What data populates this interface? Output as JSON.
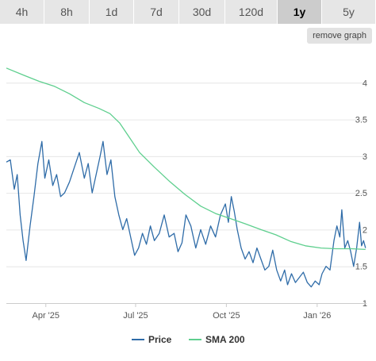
{
  "tabs": [
    {
      "label": "4h"
    },
    {
      "label": "8h"
    },
    {
      "label": "1d"
    },
    {
      "label": "7d"
    },
    {
      "label": "30d"
    },
    {
      "label": "120d"
    },
    {
      "label": "1y"
    },
    {
      "label": "5y"
    }
  ],
  "active_tab": "1y",
  "remove_graph_label": "remove graph",
  "colors": {
    "price": "#2f6ca8",
    "sma": "#5ecf8e",
    "grid": "#e6e6e6"
  },
  "chart_data": {
    "type": "line",
    "x_ticks": [
      "Apr '25",
      "Jul '25",
      "Oct '25",
      "Jan '26"
    ],
    "y_ticks": [
      "1",
      "1.5",
      "2",
      "2.5",
      "3",
      "3.5",
      "4"
    ],
    "ylim": [
      1,
      4.5
    ],
    "xlim": [
      "2025-02-20",
      "2026-02-20"
    ],
    "grid": "horizontal",
    "legend": "bottom-center",
    "series": [
      {
        "name": "Price",
        "points": [
          [
            "2025-02-20",
            2.92
          ],
          [
            "2025-02-24",
            2.95
          ],
          [
            "2025-02-28",
            2.55
          ],
          [
            "2025-03-03",
            2.75
          ],
          [
            "2025-03-06",
            2.2
          ],
          [
            "2025-03-09",
            1.85
          ],
          [
            "2025-03-12",
            1.58
          ],
          [
            "2025-03-16",
            2.05
          ],
          [
            "2025-03-20",
            2.45
          ],
          [
            "2025-03-24",
            2.9
          ],
          [
            "2025-03-28",
            3.2
          ],
          [
            "2025-03-31",
            2.7
          ],
          [
            "2025-04-04",
            2.95
          ],
          [
            "2025-04-08",
            2.6
          ],
          [
            "2025-04-12",
            2.75
          ],
          [
            "2025-04-16",
            2.45
          ],
          [
            "2025-04-20",
            2.5
          ],
          [
            "2025-04-25",
            2.65
          ],
          [
            "2025-04-30",
            2.85
          ],
          [
            "2025-05-05",
            3.05
          ],
          [
            "2025-05-10",
            2.7
          ],
          [
            "2025-05-14",
            2.9
          ],
          [
            "2025-05-18",
            2.5
          ],
          [
            "2025-05-22",
            2.75
          ],
          [
            "2025-05-26",
            3.0
          ],
          [
            "2025-05-29",
            3.2
          ],
          [
            "2025-06-02",
            2.75
          ],
          [
            "2025-06-06",
            2.95
          ],
          [
            "2025-06-10",
            2.45
          ],
          [
            "2025-06-14",
            2.2
          ],
          [
            "2025-06-18",
            2.0
          ],
          [
            "2025-06-22",
            2.15
          ],
          [
            "2025-06-26",
            1.9
          ],
          [
            "2025-06-30",
            1.65
          ],
          [
            "2025-07-04",
            1.75
          ],
          [
            "2025-07-08",
            1.95
          ],
          [
            "2025-07-12",
            1.8
          ],
          [
            "2025-07-16",
            2.05
          ],
          [
            "2025-07-20",
            1.85
          ],
          [
            "2025-07-25",
            1.95
          ],
          [
            "2025-07-30",
            2.2
          ],
          [
            "2025-08-04",
            1.9
          ],
          [
            "2025-08-09",
            1.95
          ],
          [
            "2025-08-13",
            1.7
          ],
          [
            "2025-08-17",
            1.82
          ],
          [
            "2025-08-21",
            2.2
          ],
          [
            "2025-08-26",
            2.05
          ],
          [
            "2025-08-31",
            1.75
          ],
          [
            "2025-09-05",
            2.0
          ],
          [
            "2025-09-10",
            1.8
          ],
          [
            "2025-09-15",
            2.05
          ],
          [
            "2025-09-20",
            1.9
          ],
          [
            "2025-09-25",
            2.2
          ],
          [
            "2025-09-30",
            2.35
          ],
          [
            "2025-10-03",
            2.1
          ],
          [
            "2025-10-06",
            2.45
          ],
          [
            "2025-10-09",
            2.25
          ],
          [
            "2025-10-12",
            2.0
          ],
          [
            "2025-10-16",
            1.75
          ],
          [
            "2025-10-20",
            1.6
          ],
          [
            "2025-10-24",
            1.7
          ],
          [
            "2025-10-28",
            1.55
          ],
          [
            "2025-11-01",
            1.75
          ],
          [
            "2025-11-05",
            1.6
          ],
          [
            "2025-11-09",
            1.45
          ],
          [
            "2025-11-13",
            1.5
          ],
          [
            "2025-11-17",
            1.72
          ],
          [
            "2025-11-21",
            1.45
          ],
          [
            "2025-11-25",
            1.3
          ],
          [
            "2025-11-29",
            1.45
          ],
          [
            "2025-12-02",
            1.25
          ],
          [
            "2025-12-06",
            1.4
          ],
          [
            "2025-12-10",
            1.28
          ],
          [
            "2025-12-14",
            1.35
          ],
          [
            "2025-12-18",
            1.42
          ],
          [
            "2025-12-22",
            1.28
          ],
          [
            "2025-12-26",
            1.22
          ],
          [
            "2025-12-30",
            1.3
          ],
          [
            "2026-01-03",
            1.25
          ],
          [
            "2026-01-06",
            1.4
          ],
          [
            "2026-01-10",
            1.5
          ],
          [
            "2026-01-14",
            1.45
          ],
          [
            "2026-01-18",
            1.85
          ],
          [
            "2026-01-21",
            2.05
          ],
          [
            "2026-01-24",
            1.9
          ],
          [
            "2026-01-26",
            2.27
          ],
          [
            "2026-01-29",
            1.75
          ],
          [
            "2026-02-01",
            1.85
          ],
          [
            "2026-02-04",
            1.7
          ],
          [
            "2026-02-07",
            1.5
          ],
          [
            "2026-02-10",
            1.75
          ],
          [
            "2026-02-13",
            2.1
          ],
          [
            "2026-02-15",
            1.78
          ],
          [
            "2026-02-17",
            1.85
          ],
          [
            "2026-02-19",
            1.75
          ]
        ]
      },
      {
        "name": "SMA 200",
        "points": [
          [
            "2025-02-20",
            4.2
          ],
          [
            "2025-03-10",
            4.1
          ],
          [
            "2025-03-25",
            4.02
          ],
          [
            "2025-04-10",
            3.95
          ],
          [
            "2025-04-25",
            3.85
          ],
          [
            "2025-05-10",
            3.73
          ],
          [
            "2025-05-25",
            3.65
          ],
          [
            "2025-06-05",
            3.58
          ],
          [
            "2025-06-15",
            3.45
          ],
          [
            "2025-06-25",
            3.25
          ],
          [
            "2025-07-05",
            3.05
          ],
          [
            "2025-07-20",
            2.85
          ],
          [
            "2025-08-05",
            2.65
          ],
          [
            "2025-08-20",
            2.48
          ],
          [
            "2025-09-05",
            2.32
          ],
          [
            "2025-09-20",
            2.22
          ],
          [
            "2025-10-05",
            2.15
          ],
          [
            "2025-10-20",
            2.08
          ],
          [
            "2025-11-05",
            2.0
          ],
          [
            "2025-11-20",
            1.93
          ],
          [
            "2025-12-05",
            1.84
          ],
          [
            "2025-12-20",
            1.78
          ],
          [
            "2026-01-05",
            1.75
          ],
          [
            "2026-01-20",
            1.74
          ],
          [
            "2026-02-05",
            1.74
          ],
          [
            "2026-02-19",
            1.73
          ]
        ]
      }
    ]
  }
}
